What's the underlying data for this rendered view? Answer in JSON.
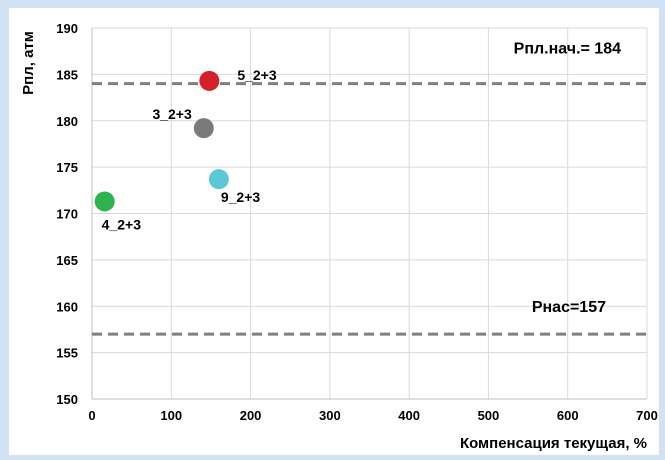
{
  "chart_data": {
    "type": "scatter",
    "title": "",
    "xlabel": "Компенсация текущая, %",
    "ylabel": "Рпл, атм",
    "xlim": [
      0,
      700
    ],
    "ylim": [
      150,
      190
    ],
    "x_ticks": [
      "0",
      "100",
      "200",
      "300",
      "400",
      "500",
      "600",
      "700"
    ],
    "y_ticks": [
      "150",
      "155",
      "160",
      "165",
      "170",
      "175",
      "180",
      "185",
      "190"
    ],
    "grid": true,
    "legend": "none",
    "points": [
      {
        "label": "5_2+3",
        "x": 148,
        "y": 184.3,
        "color": "#d42027"
      },
      {
        "label": "3_2+3",
        "x": 141,
        "y": 179.2,
        "color": "#7a7a7a"
      },
      {
        "label": "9_2+3",
        "x": 160,
        "y": 173.7,
        "color": "#5bc8d8"
      },
      {
        "label": "4_2+3",
        "x": 16,
        "y": 171.3,
        "color": "#2eb34e"
      }
    ],
    "reference_lines": [
      {
        "label": "Рпл.нач.= 184",
        "y": 184,
        "color": "#7f7f7f"
      },
      {
        "label": "Рнас=157",
        "y": 157,
        "color": "#7f7f7f"
      }
    ],
    "colors": {
      "grid": "#d9d9d9",
      "axis": "#bfbfbf",
      "background": "#ffffff",
      "frame": "#cfe3f5"
    }
  }
}
